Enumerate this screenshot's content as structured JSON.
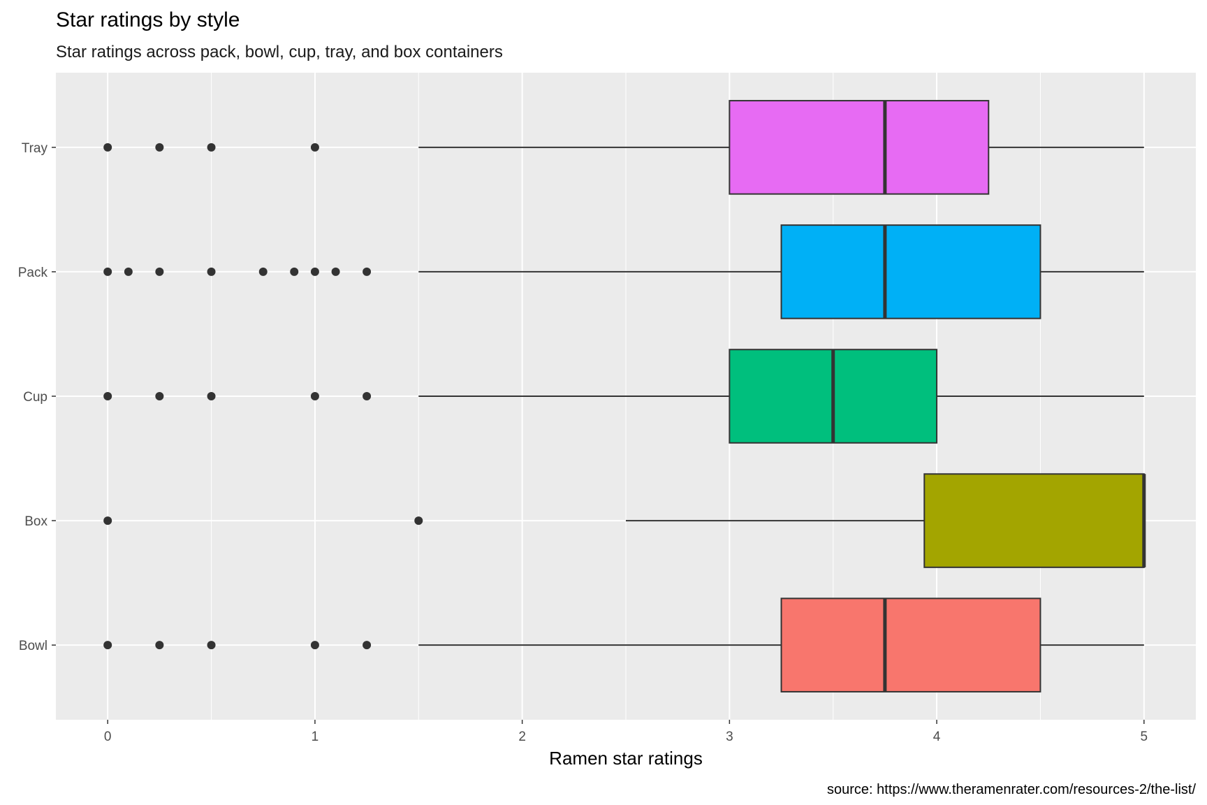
{
  "chart_data": {
    "type": "boxplot",
    "orientation": "horizontal",
    "title": "Star ratings by style",
    "subtitle": "Star ratings across pack, bowl, cup, tray, and box containers",
    "xlabel": "Ramen star ratings",
    "ylabel": "",
    "caption": "source: https://www.theramenrater.com/resources-2/the-list/",
    "xlim": [
      -0.25,
      5.25
    ],
    "x_ticks": [
      0,
      1,
      2,
      3,
      4,
      5
    ],
    "x_tick_labels": [
      "0",
      "1",
      "2",
      "3",
      "4",
      "5"
    ],
    "grid": true,
    "legend": "none",
    "categories": [
      "Bowl",
      "Box",
      "Cup",
      "Pack",
      "Tray"
    ],
    "boxes": [
      {
        "category": "Bowl",
        "color": "#F8766D",
        "whisker_low": 1.5,
        "q1": 3.25,
        "median": 3.75,
        "q3": 4.5,
        "whisker_high": 5.0,
        "outliers": [
          0,
          0.25,
          0.5,
          1.0,
          1.25
        ]
      },
      {
        "category": "Box",
        "color": "#A3A500",
        "whisker_low": 2.5,
        "q1": 3.94,
        "median": 5.0,
        "q3": 5.0,
        "whisker_high": 5.0,
        "outliers": [
          0,
          1.5
        ]
      },
      {
        "category": "Cup",
        "color": "#00BF7D",
        "whisker_low": 1.5,
        "q1": 3.0,
        "median": 3.5,
        "q3": 4.0,
        "whisker_high": 5.0,
        "outliers": [
          0,
          0.25,
          0.5,
          1.0,
          1.25
        ]
      },
      {
        "category": "Pack",
        "color": "#00B0F6",
        "whisker_low": 1.5,
        "q1": 3.25,
        "median": 3.75,
        "q3": 4.5,
        "whisker_high": 5.0,
        "outliers": [
          0,
          0.1,
          0.25,
          0.5,
          0.75,
          0.9,
          1.0,
          1.1,
          1.25
        ]
      },
      {
        "category": "Tray",
        "color": "#E76BF3",
        "whisker_low": 1.5,
        "q1": 3.0,
        "median": 3.75,
        "q3": 4.25,
        "whisker_high": 5.0,
        "outliers": [
          0,
          0.25,
          0.5,
          1.0
        ]
      }
    ]
  }
}
